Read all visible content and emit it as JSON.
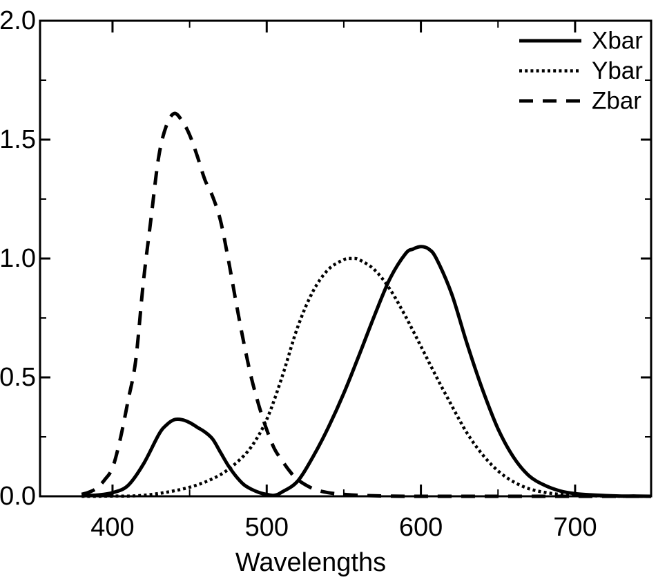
{
  "figure": {
    "background_color": "#ffffff",
    "line_color": "#000000"
  },
  "chart_data": {
    "type": "line",
    "title": "",
    "xlabel": "Wavelengths",
    "ylabel": "",
    "xlim": [
      353,
      749.3
    ],
    "ylim": [
      0,
      2.0
    ],
    "grid": false,
    "legend_position": "top-right",
    "x_ticks_major": [
      400,
      500,
      600,
      700
    ],
    "x_tick_labels": [
      "400",
      "500",
      "600",
      "700"
    ],
    "x_ticks_minor": [
      450,
      550,
      650,
      750
    ],
    "y_ticks_major": [
      0.0,
      0.5,
      1.0,
      1.5,
      2.0
    ],
    "y_tick_labels": [
      "0.0",
      "0.5",
      "1.0",
      "1.5",
      "2.0"
    ],
    "y_ticks_minor": [
      0.25,
      0.75,
      1.25,
      1.75
    ],
    "series": [
      {
        "name": "Xbar",
        "style": "solid",
        "points": [
          [
            380,
            0.002
          ],
          [
            390,
            0.005
          ],
          [
            400,
            0.015
          ],
          [
            410,
            0.045
          ],
          [
            420,
            0.135
          ],
          [
            430,
            0.26
          ],
          [
            435,
            0.3
          ],
          [
            440,
            0.322
          ],
          [
            445,
            0.322
          ],
          [
            450,
            0.31
          ],
          [
            455,
            0.29
          ],
          [
            460,
            0.27
          ],
          [
            465,
            0.24
          ],
          [
            470,
            0.185
          ],
          [
            475,
            0.13
          ],
          [
            480,
            0.085
          ],
          [
            485,
            0.05
          ],
          [
            490,
            0.03
          ],
          [
            495,
            0.016
          ],
          [
            500,
            0.008
          ],
          [
            505,
            0.004
          ],
          [
            510,
            0.018
          ],
          [
            520,
            0.063
          ],
          [
            530,
            0.166
          ],
          [
            540,
            0.29
          ],
          [
            550,
            0.433
          ],
          [
            560,
            0.595
          ],
          [
            570,
            0.762
          ],
          [
            580,
            0.916
          ],
          [
            590,
            1.02
          ],
          [
            595,
            1.04
          ],
          [
            600,
            1.05
          ],
          [
            605,
            1.04
          ],
          [
            610,
            1.0
          ],
          [
            620,
            0.85
          ],
          [
            630,
            0.64
          ],
          [
            640,
            0.448
          ],
          [
            650,
            0.284
          ],
          [
            660,
            0.165
          ],
          [
            670,
            0.087
          ],
          [
            680,
            0.047
          ],
          [
            690,
            0.023
          ],
          [
            700,
            0.011
          ],
          [
            710,
            0.006
          ],
          [
            720,
            0.003
          ],
          [
            730,
            0.001
          ],
          [
            740,
            0.001
          ],
          [
            750,
            0.0
          ]
        ]
      },
      {
        "name": "Ybar",
        "style": "dotted",
        "points": [
          [
            380,
            0.0
          ],
          [
            390,
            0.0
          ],
          [
            400,
            0.001
          ],
          [
            410,
            0.001
          ],
          [
            420,
            0.004
          ],
          [
            430,
            0.012
          ],
          [
            440,
            0.023
          ],
          [
            450,
            0.038
          ],
          [
            460,
            0.06
          ],
          [
            470,
            0.091
          ],
          [
            480,
            0.139
          ],
          [
            490,
            0.208
          ],
          [
            500,
            0.323
          ],
          [
            510,
            0.503
          ],
          [
            520,
            0.71
          ],
          [
            530,
            0.862
          ],
          [
            540,
            0.954
          ],
          [
            550,
            0.995
          ],
          [
            555,
            1.0
          ],
          [
            560,
            0.995
          ],
          [
            570,
            0.952
          ],
          [
            580,
            0.87
          ],
          [
            590,
            0.757
          ],
          [
            600,
            0.631
          ],
          [
            610,
            0.503
          ],
          [
            620,
            0.381
          ],
          [
            630,
            0.265
          ],
          [
            640,
            0.175
          ],
          [
            650,
            0.107
          ],
          [
            660,
            0.061
          ],
          [
            670,
            0.032
          ],
          [
            680,
            0.017
          ],
          [
            690,
            0.008
          ],
          [
            700,
            0.004
          ],
          [
            710,
            0.002
          ],
          [
            720,
            0.001
          ],
          [
            730,
            0.0
          ],
          [
            740,
            0.0
          ],
          [
            750,
            0.0
          ]
        ]
      },
      {
        "name": "Zbar",
        "style": "dashed",
        "points": [
          [
            380,
            0.008
          ],
          [
            385,
            0.018
          ],
          [
            390,
            0.035
          ],
          [
            395,
            0.07
          ],
          [
            400,
            0.12
          ],
          [
            405,
            0.24
          ],
          [
            410,
            0.4
          ],
          [
            415,
            0.57
          ],
          [
            420,
            0.9
          ],
          [
            425,
            1.17
          ],
          [
            430,
            1.43
          ],
          [
            435,
            1.56
          ],
          [
            440,
            1.61
          ],
          [
            445,
            1.58
          ],
          [
            450,
            1.52
          ],
          [
            455,
            1.43
          ],
          [
            460,
            1.33
          ],
          [
            465,
            1.26
          ],
          [
            470,
            1.16
          ],
          [
            475,
            1.0
          ],
          [
            480,
            0.82
          ],
          [
            485,
            0.65
          ],
          [
            490,
            0.5
          ],
          [
            495,
            0.38
          ],
          [
            500,
            0.28
          ],
          [
            505,
            0.2
          ],
          [
            510,
            0.15
          ],
          [
            515,
            0.105
          ],
          [
            520,
            0.07
          ],
          [
            530,
            0.032
          ],
          [
            540,
            0.015
          ],
          [
            550,
            0.008
          ],
          [
            560,
            0.004
          ],
          [
            570,
            0.002
          ],
          [
            580,
            0.001
          ],
          [
            590,
            0.0
          ],
          [
            600,
            0.0
          ],
          [
            620,
            0.0
          ],
          [
            650,
            0.0
          ],
          [
            700,
            0.0
          ],
          [
            750,
            0.0
          ]
        ]
      }
    ]
  }
}
